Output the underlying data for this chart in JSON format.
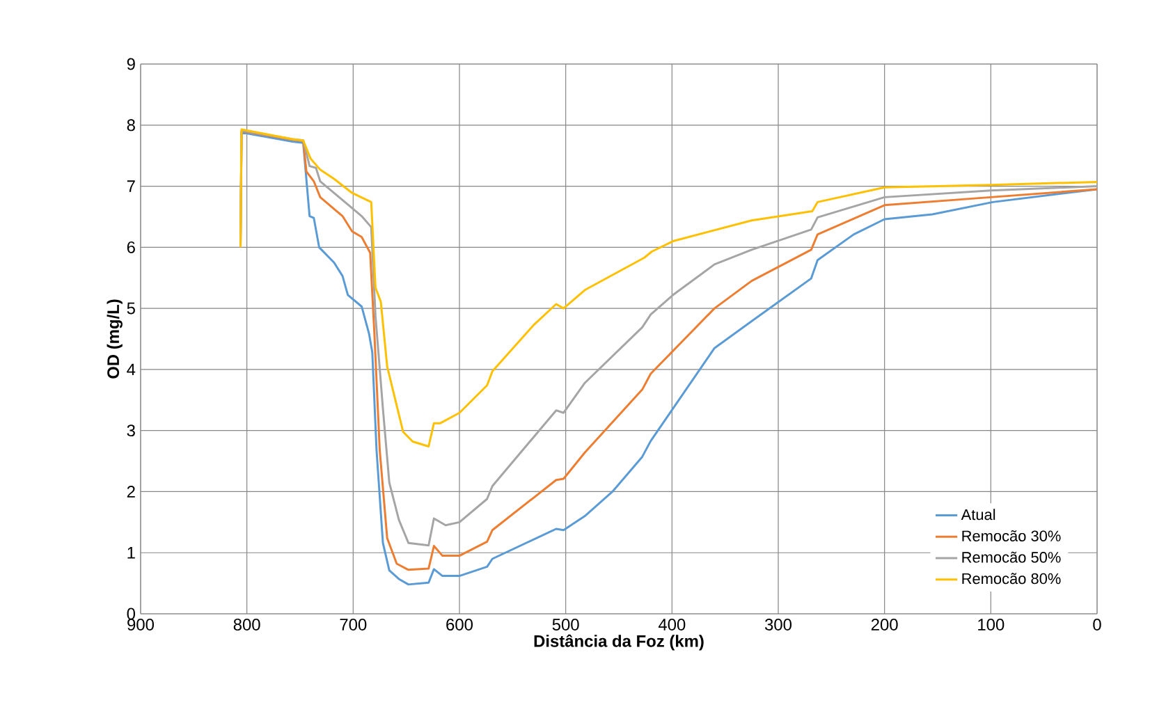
{
  "chart_data": {
    "type": "line",
    "xlabel": "Distância da Foz (km)",
    "ylabel": "OD (mg/L)",
    "xlim": [
      900,
      0
    ],
    "ylim": [
      0,
      9
    ],
    "xticks": [
      900,
      800,
      700,
      600,
      500,
      400,
      300,
      200,
      100,
      0
    ],
    "yticks": [
      0,
      1,
      2,
      3,
      4,
      5,
      6,
      7,
      8,
      9
    ],
    "grid": true,
    "legend": "bottom right",
    "marker": "none",
    "line_style": "solid",
    "series": [
      {
        "name": "Atual",
        "color": "#5b9bd5",
        "x": [
          806,
          805,
          757,
          747,
          741,
          737,
          732,
          718,
          710,
          705,
          692,
          685,
          682,
          678,
          672,
          666,
          657,
          648,
          629,
          624,
          616,
          600,
          574,
          569,
          509,
          502,
          482,
          456,
          428,
          420,
          360,
          325,
          269,
          263,
          229,
          200,
          155,
          98,
          0
        ],
        "values": [
          6.0,
          7.88,
          7.73,
          7.71,
          6.51,
          6.48,
          6.0,
          5.75,
          5.53,
          5.22,
          5.03,
          4.58,
          4.28,
          2.68,
          1.16,
          0.71,
          0.57,
          0.48,
          0.51,
          0.73,
          0.62,
          0.62,
          0.77,
          0.9,
          1.39,
          1.37,
          1.6,
          2.0,
          2.57,
          2.83,
          4.35,
          4.79,
          5.49,
          5.79,
          6.21,
          6.46,
          6.54,
          6.74,
          6.95
        ]
      },
      {
        "name": "Remocão 30%",
        "color": "#ed7d31",
        "x": [
          806,
          805,
          757,
          747,
          744,
          737,
          731,
          710,
          701,
          692,
          684,
          680,
          675,
          668,
          659,
          648,
          629,
          624,
          616,
          600,
          574,
          569,
          509,
          502,
          482,
          428,
          420,
          360,
          325,
          269,
          263,
          200,
          100,
          0
        ],
        "values": [
          6.0,
          7.9,
          7.76,
          7.74,
          7.24,
          7.08,
          6.82,
          6.51,
          6.26,
          6.17,
          5.91,
          4.58,
          2.68,
          1.24,
          0.82,
          0.72,
          0.74,
          1.11,
          0.95,
          0.95,
          1.18,
          1.37,
          2.19,
          2.21,
          2.64,
          3.67,
          3.93,
          5.0,
          5.45,
          5.96,
          6.21,
          6.69,
          6.82,
          6.95
        ]
      },
      {
        "name": "Remocão 50%",
        "color": "#a5a5a5",
        "x": [
          806,
          805,
          757,
          747,
          741,
          735,
          731,
          705,
          692,
          683,
          679,
          672,
          666,
          657,
          648,
          629,
          624,
          613,
          600,
          574,
          569,
          509,
          502,
          482,
          428,
          420,
          399,
          360,
          325,
          269,
          263,
          200,
          100,
          0
        ],
        "values": [
          6.0,
          7.91,
          7.77,
          7.75,
          7.33,
          7.3,
          7.08,
          6.7,
          6.51,
          6.33,
          4.88,
          3.36,
          2.15,
          1.54,
          1.16,
          1.12,
          1.56,
          1.45,
          1.5,
          1.88,
          2.09,
          3.33,
          3.29,
          3.78,
          4.69,
          4.9,
          5.22,
          5.72,
          5.96,
          6.29,
          6.49,
          6.82,
          6.93,
          7.0
        ]
      },
      {
        "name": "Remocão 80%",
        "color": "#ffc000",
        "x": [
          806,
          805,
          757,
          747,
          740,
          731,
          718,
          701,
          683,
          679,
          674,
          668,
          661,
          653,
          644,
          629,
          624,
          618,
          600,
          574,
          569,
          530,
          509,
          502,
          482,
          426,
          419,
          399,
          325,
          268,
          263,
          200,
          100,
          0
        ],
        "values": [
          6.0,
          7.93,
          7.77,
          7.75,
          7.45,
          7.27,
          7.12,
          6.89,
          6.74,
          5.34,
          5.11,
          4.05,
          3.55,
          2.98,
          2.82,
          2.74,
          3.12,
          3.12,
          3.29,
          3.74,
          3.97,
          4.73,
          5.07,
          5.0,
          5.3,
          5.83,
          5.93,
          6.1,
          6.44,
          6.59,
          6.74,
          6.98,
          7.02,
          7.07
        ]
      }
    ]
  }
}
